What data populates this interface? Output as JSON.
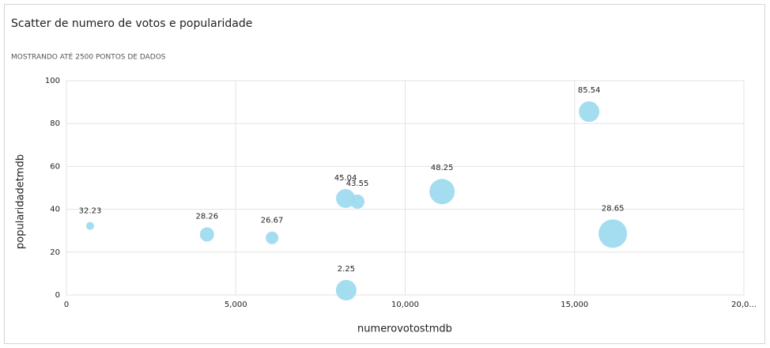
{
  "chart_data": {
    "type": "scatter",
    "title": "Scatter de numero de votos e popularidade",
    "subtitle": "MOSTRANDO ATÉ 2500 PONTOS DE DADOS",
    "x_label": "numerovotostmdb",
    "y_label": "popularidadetmdb",
    "x": [
      700,
      4150,
      6070,
      8240,
      8590,
      8260,
      11090,
      15430,
      16130
    ],
    "values": [
      32.23,
      28.26,
      26.67,
      45.04,
      43.55,
      2.25,
      48.25,
      85.54,
      28.65
    ],
    "sizes": [
      25,
      81,
      64,
      144,
      81,
      169,
      256,
      169,
      324
    ],
    "color": "#9fdaef",
    "xlim": [
      0,
      20000
    ],
    "xticks": [
      0,
      {
        "value": 5000,
        "label": "5,000"
      },
      {
        "value": 10000,
        "label": "10,000"
      },
      {
        "value": 15000,
        "label": "15,000"
      },
      {
        "value": 20000,
        "label": "20,0..."
      }
    ],
    "ylim": [
      0,
      100
    ],
    "yticks": [
      0,
      20,
      40,
      60,
      80,
      100
    ],
    "grid": true
  }
}
